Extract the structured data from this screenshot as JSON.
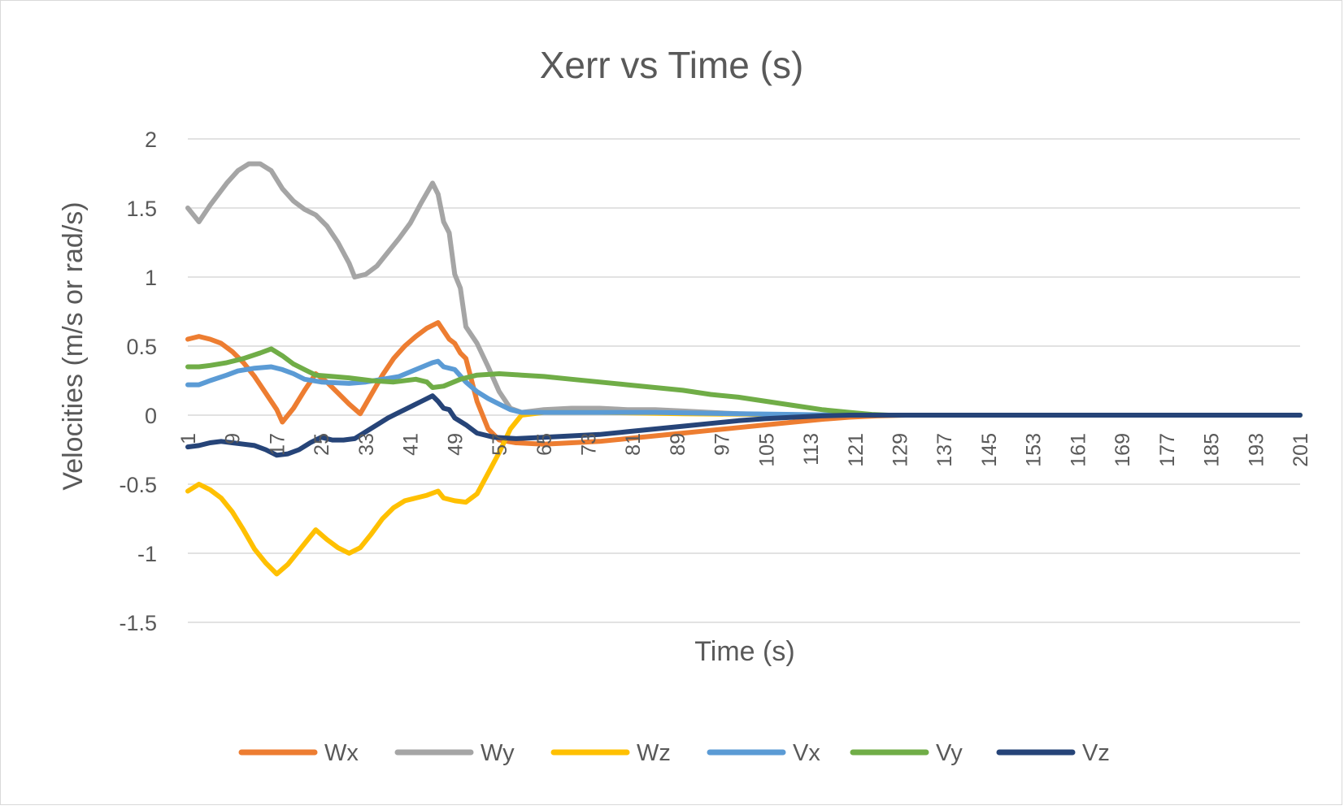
{
  "chart_data": {
    "type": "line",
    "title": "Xerr vs Time (s)",
    "xlabel": "Time (s)",
    "ylabel": "Velocities (m/s or rad/s)",
    "ylim": [
      -1.5,
      2
    ],
    "yticks": [
      "2",
      "1.5",
      "1",
      "0.5",
      "0",
      "-0.5",
      "-1",
      "-1.5"
    ],
    "xlim": [
      1,
      201
    ],
    "xticks": [
      "1",
      "9",
      "17",
      "25",
      "33",
      "41",
      "49",
      "57",
      "65",
      "73",
      "81",
      "89",
      "97",
      "105",
      "113",
      "121",
      "129",
      "137",
      "145",
      "153",
      "161",
      "169",
      "177",
      "185",
      "193",
      "201"
    ],
    "grid": true,
    "legend_position": "bottom",
    "series": [
      {
        "name": "Wx",
        "color": "#ED7D31",
        "points": [
          [
            1,
            0.55
          ],
          [
            3,
            0.57
          ],
          [
            5,
            0.55
          ],
          [
            7,
            0.52
          ],
          [
            9,
            0.46
          ],
          [
            11,
            0.38
          ],
          [
            13,
            0.28
          ],
          [
            15,
            0.16
          ],
          [
            17,
            0.04
          ],
          [
            18,
            -0.05
          ],
          [
            20,
            0.05
          ],
          [
            22,
            0.18
          ],
          [
            24,
            0.3
          ],
          [
            26,
            0.24
          ],
          [
            28,
            0.16
          ],
          [
            30,
            0.08
          ],
          [
            32,
            0.01
          ],
          [
            34,
            0.15
          ],
          [
            36,
            0.29
          ],
          [
            38,
            0.41
          ],
          [
            40,
            0.5
          ],
          [
            42,
            0.57
          ],
          [
            44,
            0.63
          ],
          [
            46,
            0.67
          ],
          [
            48,
            0.55
          ],
          [
            49,
            0.52
          ],
          [
            50,
            0.45
          ],
          [
            51,
            0.41
          ],
          [
            53,
            0.1
          ],
          [
            55,
            -0.1
          ],
          [
            57,
            -0.18
          ],
          [
            60,
            -0.2
          ],
          [
            65,
            -0.21
          ],
          [
            70,
            -0.2
          ],
          [
            75,
            -0.19
          ],
          [
            80,
            -0.17
          ],
          [
            85,
            -0.15
          ],
          [
            90,
            -0.13
          ],
          [
            95,
            -0.11
          ],
          [
            100,
            -0.09
          ],
          [
            105,
            -0.07
          ],
          [
            110,
            -0.05
          ],
          [
            115,
            -0.03
          ],
          [
            120,
            -0.015
          ],
          [
            125,
            -0.005
          ],
          [
            130,
            0
          ],
          [
            201,
            0
          ]
        ]
      },
      {
        "name": "Wy",
        "color": "#A5A5A5",
        "points": [
          [
            1,
            1.5
          ],
          [
            3,
            1.4
          ],
          [
            5,
            1.52
          ],
          [
            8,
            1.68
          ],
          [
            10,
            1.77
          ],
          [
            12,
            1.82
          ],
          [
            14,
            1.82
          ],
          [
            16,
            1.77
          ],
          [
            18,
            1.64
          ],
          [
            20,
            1.55
          ],
          [
            22,
            1.49
          ],
          [
            24,
            1.45
          ],
          [
            26,
            1.37
          ],
          [
            28,
            1.25
          ],
          [
            30,
            1.1
          ],
          [
            31,
            1.0
          ],
          [
            33,
            1.02
          ],
          [
            35,
            1.08
          ],
          [
            37,
            1.18
          ],
          [
            39,
            1.28
          ],
          [
            41,
            1.39
          ],
          [
            43,
            1.54
          ],
          [
            45,
            1.68
          ],
          [
            46,
            1.6
          ],
          [
            47,
            1.4
          ],
          [
            48,
            1.32
          ],
          [
            49,
            1.02
          ],
          [
            50,
            0.92
          ],
          [
            51,
            0.64
          ],
          [
            53,
            0.52
          ],
          [
            55,
            0.35
          ],
          [
            57,
            0.17
          ],
          [
            59,
            0.05
          ],
          [
            61,
            0.02
          ],
          [
            65,
            0.04
          ],
          [
            70,
            0.05
          ],
          [
            75,
            0.05
          ],
          [
            80,
            0.04
          ],
          [
            85,
            0.04
          ],
          [
            90,
            0.03
          ],
          [
            95,
            0.02
          ],
          [
            100,
            0.01
          ],
          [
            105,
            0.005
          ],
          [
            110,
            0
          ],
          [
            201,
            0
          ]
        ]
      },
      {
        "name": "Wz",
        "color": "#FFC000",
        "points": [
          [
            1,
            -0.55
          ],
          [
            3,
            -0.5
          ],
          [
            5,
            -0.54
          ],
          [
            7,
            -0.6
          ],
          [
            9,
            -0.7
          ],
          [
            11,
            -0.83
          ],
          [
            13,
            -0.97
          ],
          [
            15,
            -1.07
          ],
          [
            17,
            -1.15
          ],
          [
            19,
            -1.08
          ],
          [
            21,
            -0.98
          ],
          [
            24,
            -0.83
          ],
          [
            26,
            -0.9
          ],
          [
            28,
            -0.96
          ],
          [
            30,
            -1.0
          ],
          [
            32,
            -0.96
          ],
          [
            34,
            -0.86
          ],
          [
            36,
            -0.75
          ],
          [
            38,
            -0.67
          ],
          [
            40,
            -0.62
          ],
          [
            42,
            -0.6
          ],
          [
            44,
            -0.58
          ],
          [
            46,
            -0.55
          ],
          [
            47,
            -0.6
          ],
          [
            49,
            -0.62
          ],
          [
            51,
            -0.63
          ],
          [
            53,
            -0.57
          ],
          [
            55,
            -0.42
          ],
          [
            57,
            -0.27
          ],
          [
            59,
            -0.1
          ],
          [
            61,
            0.0
          ],
          [
            65,
            0.02
          ],
          [
            75,
            0.02
          ],
          [
            90,
            0.01
          ],
          [
            105,
            0.005
          ],
          [
            115,
            0
          ],
          [
            201,
            0
          ]
        ]
      },
      {
        "name": "Vx",
        "color": "#5B9BD5",
        "points": [
          [
            1,
            0.22
          ],
          [
            3,
            0.22
          ],
          [
            5,
            0.25
          ],
          [
            8,
            0.29
          ],
          [
            10,
            0.32
          ],
          [
            13,
            0.34
          ],
          [
            16,
            0.35
          ],
          [
            18,
            0.33
          ],
          [
            20,
            0.3
          ],
          [
            22,
            0.26
          ],
          [
            25,
            0.24
          ],
          [
            30,
            0.23
          ],
          [
            33,
            0.24
          ],
          [
            36,
            0.26
          ],
          [
            39,
            0.28
          ],
          [
            42,
            0.33
          ],
          [
            45,
            0.38
          ],
          [
            46,
            0.39
          ],
          [
            47,
            0.35
          ],
          [
            49,
            0.33
          ],
          [
            51,
            0.24
          ],
          [
            53,
            0.17
          ],
          [
            55,
            0.12
          ],
          [
            57,
            0.08
          ],
          [
            59,
            0.04
          ],
          [
            61,
            0.02
          ],
          [
            70,
            0.02
          ],
          [
            85,
            0.02
          ],
          [
            100,
            0.01
          ],
          [
            110,
            0.005
          ],
          [
            118,
            0
          ],
          [
            201,
            0
          ]
        ]
      },
      {
        "name": "Vy",
        "color": "#70AD47",
        "points": [
          [
            1,
            0.35
          ],
          [
            3,
            0.35
          ],
          [
            5,
            0.36
          ],
          [
            8,
            0.38
          ],
          [
            11,
            0.41
          ],
          [
            14,
            0.45
          ],
          [
            16,
            0.48
          ],
          [
            18,
            0.43
          ],
          [
            20,
            0.37
          ],
          [
            22,
            0.33
          ],
          [
            24,
            0.29
          ],
          [
            27,
            0.28
          ],
          [
            30,
            0.27
          ],
          [
            34,
            0.25
          ],
          [
            38,
            0.24
          ],
          [
            42,
            0.26
          ],
          [
            44,
            0.24
          ],
          [
            45,
            0.2
          ],
          [
            47,
            0.21
          ],
          [
            50,
            0.26
          ],
          [
            53,
            0.29
          ],
          [
            57,
            0.3
          ],
          [
            61,
            0.29
          ],
          [
            65,
            0.28
          ],
          [
            70,
            0.26
          ],
          [
            75,
            0.24
          ],
          [
            80,
            0.22
          ],
          [
            85,
            0.2
          ],
          [
            90,
            0.18
          ],
          [
            95,
            0.15
          ],
          [
            100,
            0.13
          ],
          [
            105,
            0.1
          ],
          [
            110,
            0.07
          ],
          [
            115,
            0.04
          ],
          [
            120,
            0.02
          ],
          [
            124,
            0.005
          ],
          [
            127,
            0
          ],
          [
            201,
            0
          ]
        ]
      },
      {
        "name": "Vz",
        "color": "#264478",
        "points": [
          [
            1,
            -0.23
          ],
          [
            3,
            -0.22
          ],
          [
            5,
            -0.2
          ],
          [
            7,
            -0.19
          ],
          [
            9,
            -0.2
          ],
          [
            11,
            -0.21
          ],
          [
            13,
            -0.22
          ],
          [
            15,
            -0.25
          ],
          [
            17,
            -0.29
          ],
          [
            19,
            -0.28
          ],
          [
            21,
            -0.25
          ],
          [
            23,
            -0.2
          ],
          [
            25,
            -0.16
          ],
          [
            27,
            -0.18
          ],
          [
            29,
            -0.18
          ],
          [
            31,
            -0.17
          ],
          [
            33,
            -0.12
          ],
          [
            35,
            -0.07
          ],
          [
            37,
            -0.02
          ],
          [
            39,
            0.02
          ],
          [
            41,
            0.06
          ],
          [
            43,
            0.1
          ],
          [
            45,
            0.14
          ],
          [
            46,
            0.1
          ],
          [
            47,
            0.05
          ],
          [
            48,
            0.04
          ],
          [
            49,
            -0.02
          ],
          [
            51,
            -0.07
          ],
          [
            53,
            -0.13
          ],
          [
            56,
            -0.16
          ],
          [
            60,
            -0.17
          ],
          [
            65,
            -0.16
          ],
          [
            70,
            -0.15
          ],
          [
            75,
            -0.14
          ],
          [
            80,
            -0.12
          ],
          [
            85,
            -0.1
          ],
          [
            90,
            -0.08
          ],
          [
            95,
            -0.06
          ],
          [
            100,
            -0.04
          ],
          [
            105,
            -0.025
          ],
          [
            110,
            -0.015
          ],
          [
            115,
            -0.005
          ],
          [
            120,
            0
          ],
          [
            201,
            0
          ]
        ]
      }
    ]
  }
}
